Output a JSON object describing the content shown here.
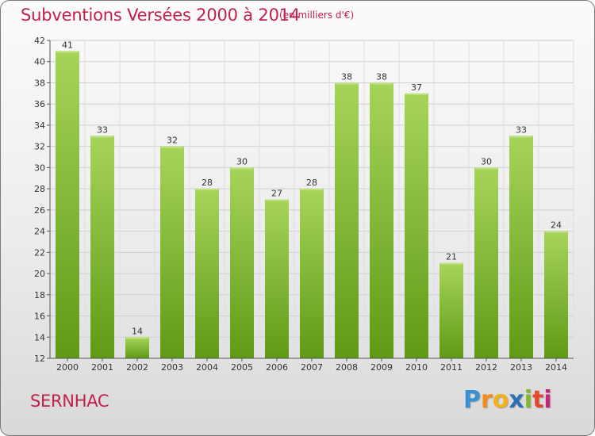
{
  "header": {
    "title": "Subventions Versées 2000 à 2014",
    "subtitle": "(en milliers d'€)"
  },
  "footer": {
    "place": "SERNHAC",
    "logo": "Proxiti"
  },
  "colors": {
    "title": "#c0204a",
    "bar_light": "#a6d45a",
    "bar_dark": "#5f9a16"
  },
  "chart_data": {
    "type": "bar",
    "title": "Subventions Versées 2000 à 2014",
    "subtitle": "(en milliers d'€)",
    "categories": [
      "2000",
      "2001",
      "2002",
      "2003",
      "2004",
      "2005",
      "2006",
      "2007",
      "2008",
      "2009",
      "2010",
      "2011",
      "2012",
      "2013",
      "2014"
    ],
    "values": [
      41,
      33,
      14,
      32,
      28,
      30,
      27,
      28,
      38,
      38,
      37,
      21,
      30,
      33,
      24
    ],
    "ylim": [
      12,
      42
    ],
    "yticks": [
      12,
      14,
      16,
      18,
      20,
      22,
      24,
      26,
      28,
      30,
      32,
      34,
      36,
      38,
      40,
      42
    ],
    "grid": true,
    "data_labels": true
  }
}
